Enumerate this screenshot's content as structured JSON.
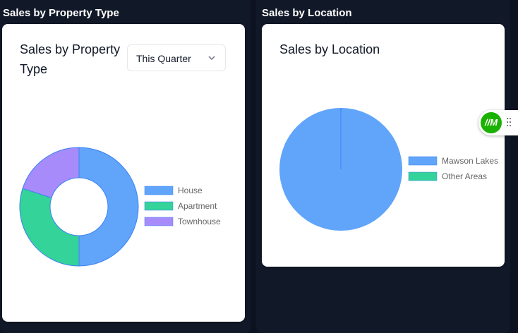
{
  "left_panel": {
    "title": "Sales by Property Type",
    "card_title": "Sales by Property Type",
    "period_select": {
      "value": "This Quarter"
    }
  },
  "right_panel": {
    "title": "Sales by Location",
    "card_title": "Sales by Location"
  },
  "floating_badge": {
    "label": "//M",
    "icon": "logo-icon",
    "handle_icon": "drag-handle-icon"
  },
  "chart_data": [
    {
      "type": "pie",
      "variant": "doughnut",
      "title": "",
      "labels": [
        "House",
        "Apartment",
        "Townhouse"
      ],
      "values": [
        50,
        30,
        20
      ],
      "colors": [
        "#60a5fa",
        "#34d399",
        "#a78bfa"
      ],
      "legend": "right"
    },
    {
      "type": "pie",
      "title": "",
      "labels": [
        "Mawson Lakes",
        "Other Areas"
      ],
      "values": [
        100,
        0
      ],
      "colors": [
        "#60a5fa",
        "#34d399"
      ],
      "legend": "right"
    }
  ]
}
